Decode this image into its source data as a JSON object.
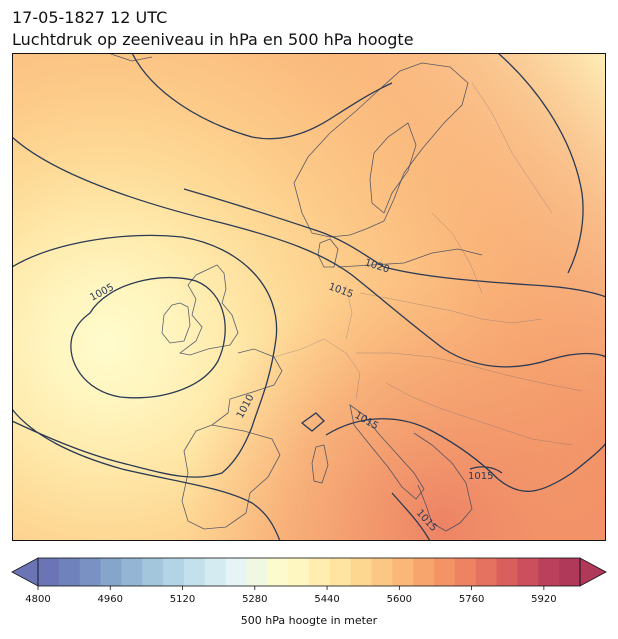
{
  "title": {
    "line1": "17-05-1827 12 UTC",
    "line2": "Luchtdruk op zeeniveau in hPa en 500 hPa hoogte"
  },
  "colorbar": {
    "label": "500 hPa hoogte in meter",
    "min": 4800,
    "max": 5960,
    "step": 40,
    "ticks": [
      "4800",
      "4960",
      "5120",
      "5280",
      "5440",
      "5600",
      "5760",
      "5920"
    ],
    "colors": [
      "#6b75b5",
      "#6f82bb",
      "#7a92c3",
      "#86a5cb",
      "#94b6d4",
      "#a3c6dc",
      "#b3d4e5",
      "#c3e0ec",
      "#d5ebf2",
      "#e6f4f5",
      "#f1f8e2",
      "#fbfbce",
      "#fff7c2",
      "#ffeeb0",
      "#fee4a0",
      "#fdd690",
      "#fcc784",
      "#fbb777",
      "#f8a56d",
      "#f49466",
      "#ee8363",
      "#e57260",
      "#d95f5f",
      "#cb4f5d",
      "#bb405b",
      "#b03858"
    ],
    "extend": "both"
  },
  "map": {
    "projection": "Europe",
    "isobar_labels": [
      "1005",
      "1010",
      "1015",
      "1020",
      "1015",
      "1015",
      "1015",
      "1015"
    ]
  }
}
